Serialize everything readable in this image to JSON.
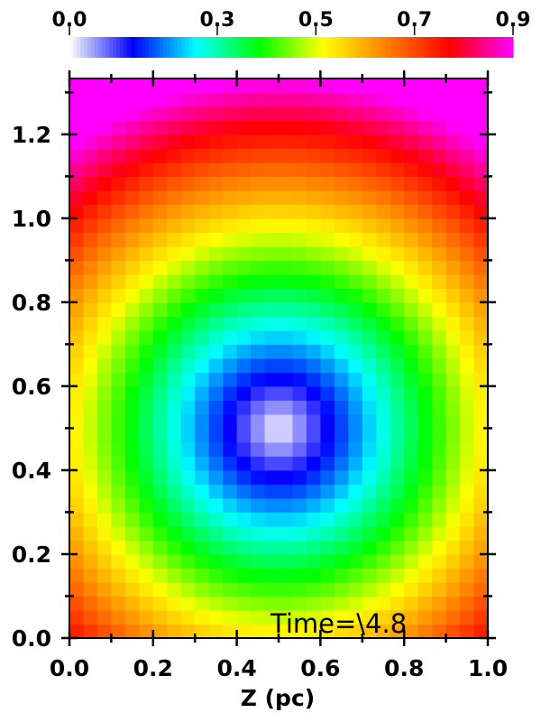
{
  "chart_data": {
    "type": "heatmap",
    "title": "",
    "xlabel": "Z (pc)",
    "ylabel": "",
    "xlim": [
      0.0,
      1.0
    ],
    "ylim": [
      0.0,
      1.333
    ],
    "xticks": [
      "0.0",
      "0.2",
      "0.4",
      "0.6",
      "0.8",
      "1.0"
    ],
    "xtick_values": [
      0.0,
      0.2,
      0.4,
      0.6,
      0.8,
      1.0
    ],
    "yticks": [
      "0.0",
      "0.2",
      "0.4",
      "0.6",
      "0.8",
      "1.0",
      "1.2"
    ],
    "ytick_values": [
      0.0,
      0.2,
      0.4,
      0.6,
      0.8,
      1.0,
      1.2
    ],
    "grid": false,
    "annotation": "Time=\\4.8",
    "field": {
      "nx": 30,
      "ny": 40,
      "center": [
        0.5,
        0.5
      ],
      "min": 0.0,
      "max": 0.9,
      "profile": "value increases with distance from the center"
    },
    "colorbar": {
      "position": "top",
      "range": [
        0.0,
        0.9
      ],
      "tick_labels": [
        "0.0",
        "0.3",
        "0.5",
        "0.7",
        "0.9"
      ],
      "tick_values": [
        0.0,
        0.3,
        0.5,
        0.7,
        0.9
      ],
      "colors": [
        "#ffffff",
        "#0000ff",
        "#00ffff",
        "#00ff00",
        "#ffff00",
        "#ff8000",
        "#ff0000",
        "#ff00ff"
      ]
    }
  }
}
